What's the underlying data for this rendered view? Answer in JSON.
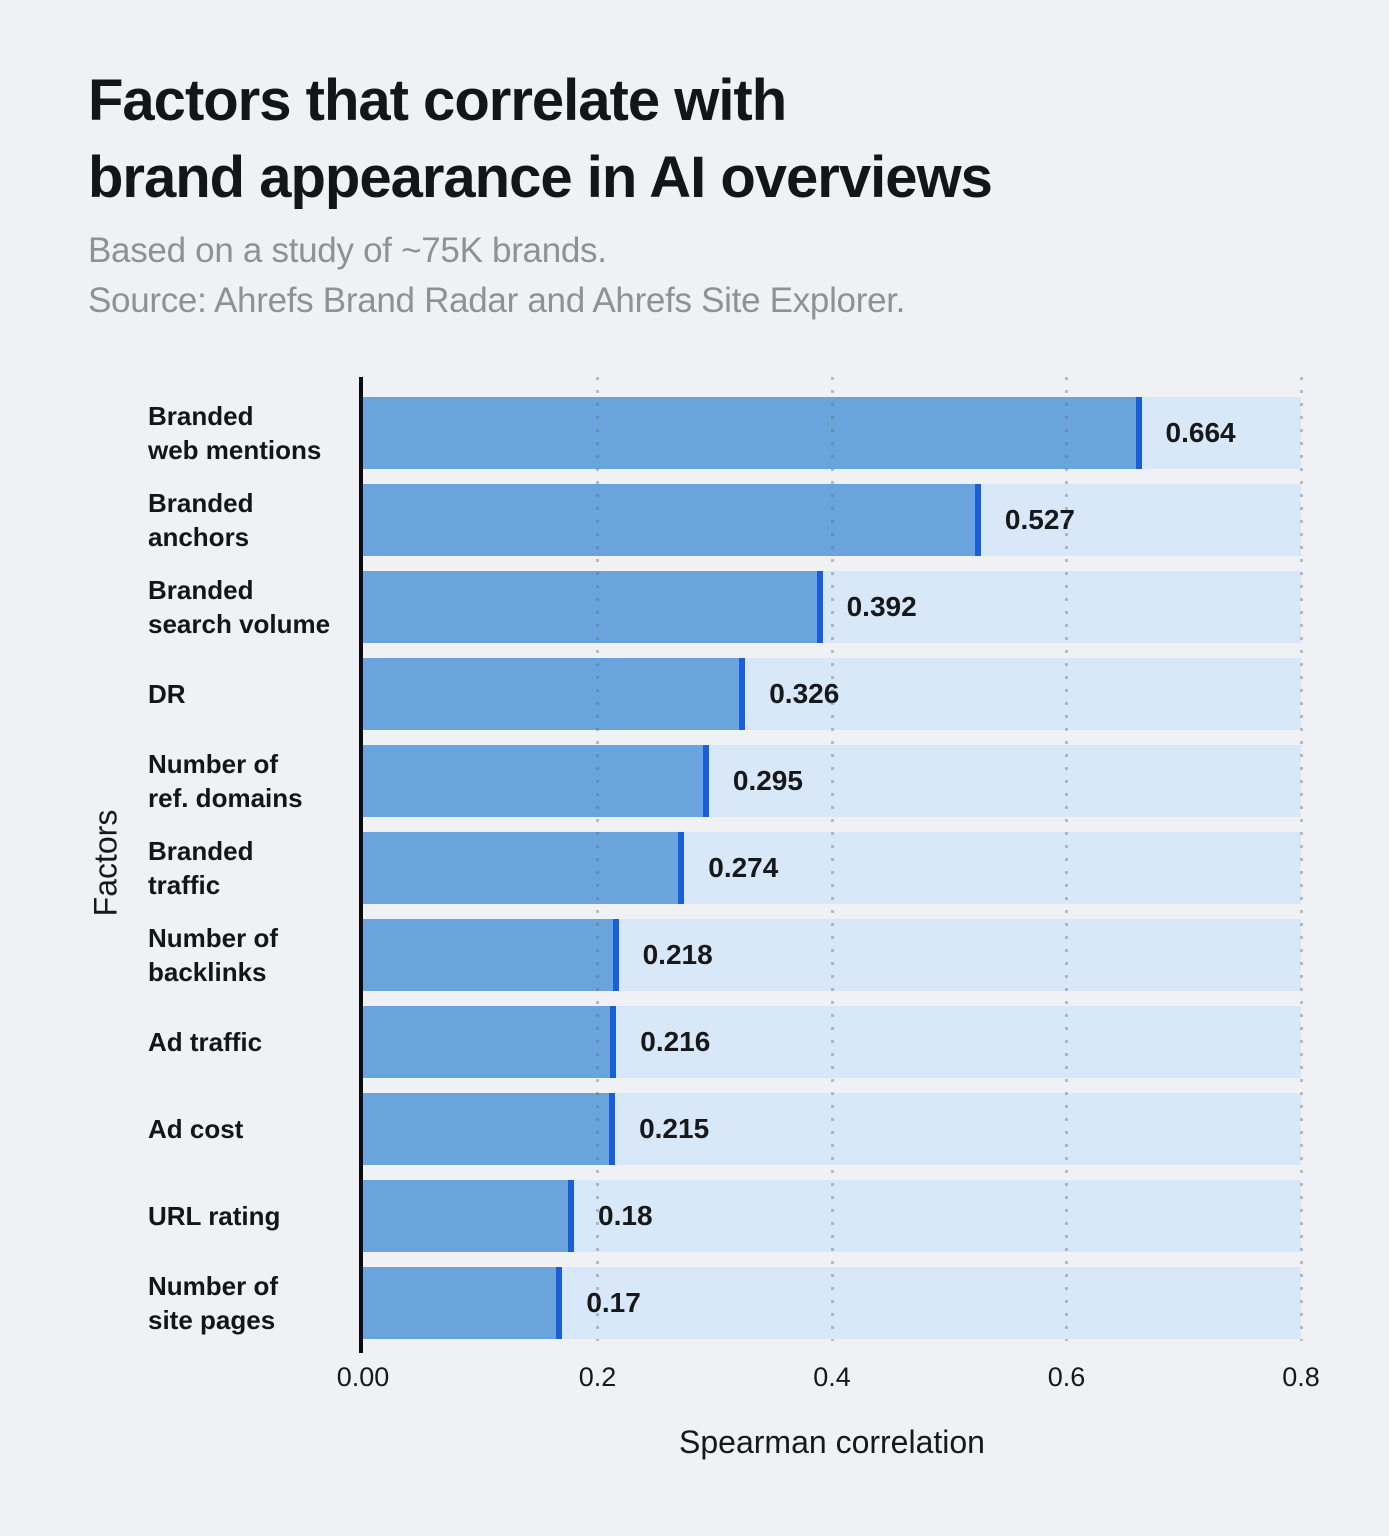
{
  "title": {
    "line1": "Factors that correlate with",
    "line2": "brand appearance in AI overviews"
  },
  "subtitle": {
    "line1": "Based on a study of ~75K brands.",
    "line2": "Source: Ahrefs Brand Radar and Ahrefs Site Explorer."
  },
  "chart_data": {
    "type": "bar",
    "orientation": "horizontal",
    "title": "Factors that correlate with brand appearance in AI overviews",
    "subtitle": "Based on a study of ~75K brands. Source: Ahrefs Brand Radar and Ahrefs Site Explorer.",
    "categories": [
      "Branded web mentions",
      "Branded anchors",
      "Branded search volume",
      "DR",
      "Number of ref. domains",
      "Branded traffic",
      "Number of backlinks",
      "Ad traffic",
      "Ad cost",
      "URL rating",
      "Number of site pages"
    ],
    "category_lines": [
      "Branded\nweb mentions",
      "Branded\nanchors",
      "Branded\nsearch volume",
      "DR",
      "Number of\nref. domains",
      "Branded\ntraffic",
      "Number of\nbacklinks",
      "Ad traffic",
      "Ad cost",
      "URL rating",
      "Number of\nsite pages"
    ],
    "values": [
      0.664,
      0.527,
      0.392,
      0.326,
      0.295,
      0.274,
      0.218,
      0.216,
      0.215,
      0.18,
      0.17
    ],
    "value_labels": [
      "0.664",
      "0.527",
      "0.392",
      "0.326",
      "0.295",
      "0.274",
      "0.218",
      "0.216",
      "0.215",
      "0.18",
      "0.17"
    ],
    "xlabel": "Spearman correlation",
    "ylabel": "Factors",
    "xlim": [
      0,
      0.8
    ],
    "x_ticks": [
      "0.00",
      "0.2",
      "0.4",
      "0.6",
      "0.8"
    ],
    "x_tick_values": [
      0,
      0.2,
      0.4,
      0.6,
      0.8
    ],
    "grid": "dotted-vertical-on",
    "legend": "none",
    "colors": {
      "background": "#f0f1f4",
      "bar": "#69a4dc",
      "bar_end_cap": "#1a5fd8",
      "bar_track": "#d9e8f9",
      "title_text": "#141518",
      "subtitle_text": "#8f9196",
      "axis_line": "#0c0d0e",
      "grid_dots": "#5f6571"
    }
  }
}
